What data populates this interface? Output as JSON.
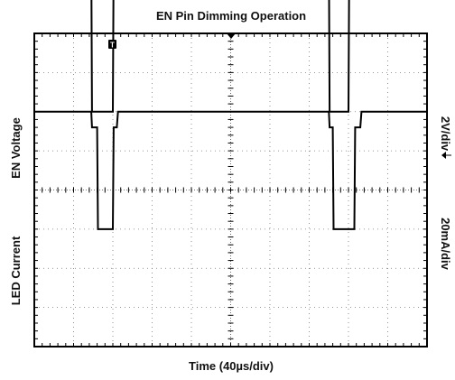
{
  "chart_data": {
    "type": "line",
    "title": "EN Pin Dimming Operation",
    "xlabel": "Time (40µs/div)",
    "x_divisions": 10,
    "y_divisions": 8,
    "grid": true,
    "trigger_marker": "T",
    "channels": [
      {
        "name": "EN Voltage",
        "scale": "2V/div",
        "color": "#000000",
        "baseline_div": 2.0,
        "x": [
          0,
          1.45,
          1.47,
          2.0,
          2.02,
          7.5,
          7.52,
          8.0,
          8.02,
          10
        ],
        "y": [
          4.0,
          4.0,
          0.0,
          0.0,
          4.0,
          4.0,
          0.0,
          0.0,
          4.0,
          4.0
        ]
      },
      {
        "name": "LED Current",
        "scale": "20mA/div",
        "color": "#000000",
        "baseline_div": -3.0,
        "x": [
          0,
          1.45,
          1.47,
          1.6,
          1.62,
          2.0,
          2.02,
          2.1,
          2.13,
          7.5,
          7.52,
          7.6,
          7.62,
          8.15,
          8.17,
          8.3,
          8.33,
          10
        ],
        "y": [
          5.0,
          5.0,
          4.6,
          4.6,
          2.0,
          2.0,
          4.6,
          4.6,
          5.0,
          5.0,
          4.6,
          4.6,
          2.0,
          2.0,
          4.6,
          4.6,
          5.0,
          5.0
        ]
      }
    ]
  }
}
